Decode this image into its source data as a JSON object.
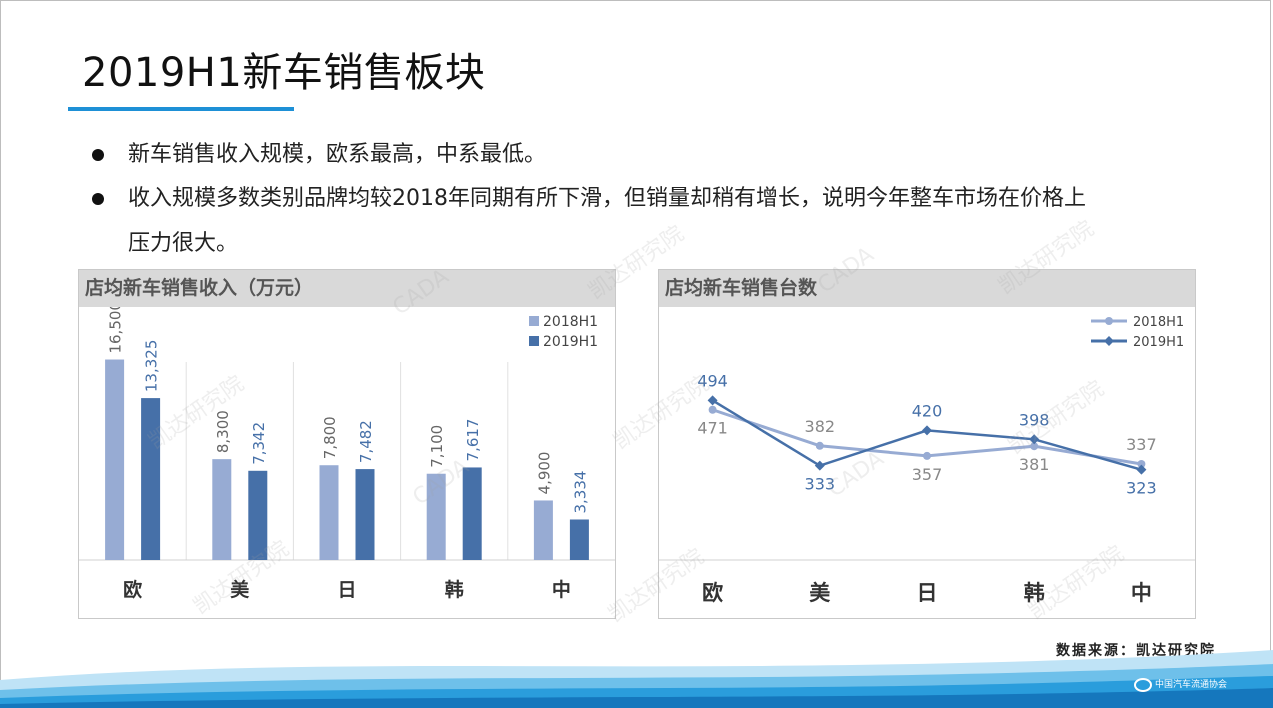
{
  "title": "2019H1新车销售板块",
  "bullets": [
    "新车销售收入规模，欧系最高，中系最低。",
    "收入规模多数类别品牌均较2018年同期有所下滑，但销量却稍有增长，说明今年整车市场在价格上",
    "压力很大。"
  ],
  "source": "数据来源：凯达研究院",
  "watermark_texts": [
    "凯达研究院",
    "CADA"
  ],
  "footer_org": "中国汽车流通协会",
  "colors": {
    "series_2018": "#97abd3",
    "series_2019": "#4670a8",
    "accent": "#1e90d6"
  },
  "chart_data": [
    {
      "type": "bar",
      "title": "店均新车销售收入（万元）",
      "categories": [
        "欧",
        "美",
        "日",
        "韩",
        "中"
      ],
      "series": [
        {
          "name": "2018H1",
          "values": [
            16500,
            8300,
            7800,
            7100,
            4900
          ],
          "labels": [
            "16,500",
            "8,300",
            "7,800",
            "7,100",
            "4,900"
          ]
        },
        {
          "name": "2019H1",
          "values": [
            13325,
            7342,
            7482,
            7617,
            3334
          ],
          "labels": [
            "13,325",
            "7,342",
            "7,482",
            "7,617",
            "3,334"
          ]
        }
      ],
      "ylim": [
        0,
        20000
      ],
      "legend": "top-right",
      "grid": false
    },
    {
      "type": "line",
      "title": "店均新车销售台数",
      "categories": [
        "欧",
        "美",
        "日",
        "韩",
        "中"
      ],
      "series": [
        {
          "name": "2018H1",
          "values": [
            471,
            382,
            357,
            381,
            337
          ]
        },
        {
          "name": "2019H1",
          "values": [
            494,
            333,
            420,
            398,
            323
          ]
        }
      ],
      "ylim": [
        100,
        700
      ],
      "legend": "top-right",
      "grid": false
    }
  ]
}
